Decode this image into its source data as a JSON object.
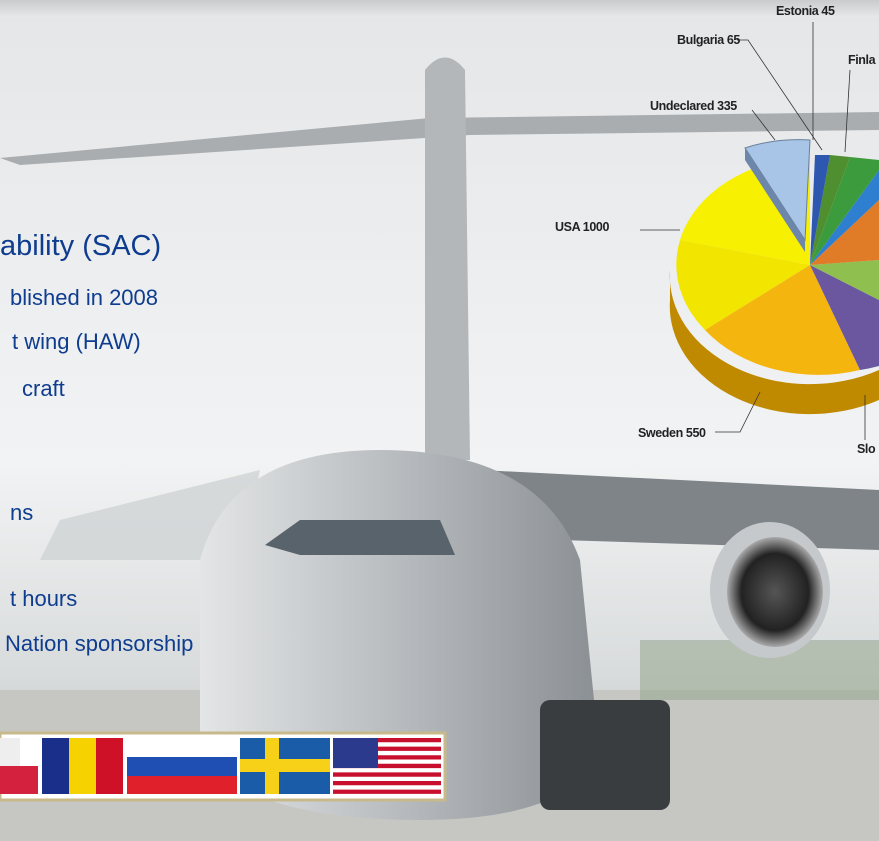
{
  "slide": {
    "text_lines": [
      "ability (SAC)",
      "blished in 2008",
      "t wing (HAW)",
      "craft",
      "ns",
      "t hours",
      "Nation sponsorship"
    ],
    "pie_labels": [
      "Estonia 45",
      "Bulgaria 65",
      "Finla",
      "Undeclared 335",
      "USA 1000",
      "Sweden 550",
      "Slo"
    ]
  }
}
